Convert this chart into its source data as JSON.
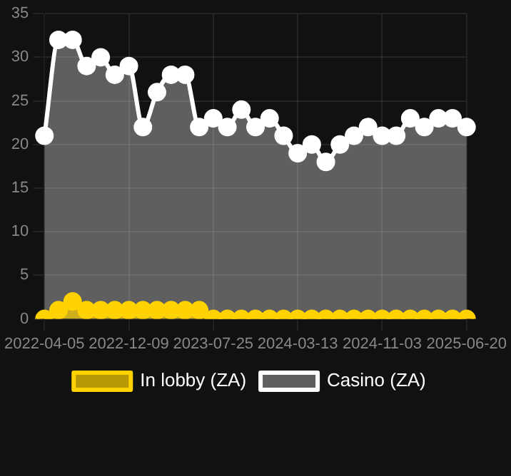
{
  "chart_data": {
    "type": "area",
    "categories": [
      "2022-04-05",
      null,
      null,
      null,
      null,
      null,
      "2022-12-09",
      null,
      null,
      null,
      null,
      null,
      "2023-07-25",
      null,
      null,
      null,
      null,
      null,
      "2024-03-13",
      null,
      null,
      null,
      null,
      null,
      "2024-11-03",
      null,
      null,
      null,
      null,
      null,
      "2025-06-20"
    ],
    "series": [
      {
        "name": "In lobby (ZA)",
        "color": "#ffd200",
        "values": [
          0,
          1,
          2,
          1,
          1,
          1,
          1,
          1,
          1,
          1,
          1,
          1,
          0,
          0,
          0,
          0,
          0,
          0,
          0,
          0,
          0,
          0,
          0,
          0,
          0,
          0,
          0,
          0,
          0,
          0,
          0
        ]
      },
      {
        "name": "Casino (ZA)",
        "color": "#ffffff",
        "values": [
          21,
          32,
          32,
          29,
          30,
          28,
          29,
          22,
          26,
          28,
          28,
          22,
          23,
          22,
          24,
          22,
          23,
          21,
          19,
          20,
          18,
          20,
          21,
          22,
          21,
          21,
          23,
          22,
          23,
          23,
          22
        ]
      }
    ],
    "ylim": [
      0,
      35
    ],
    "yticks": [
      0,
      5,
      10,
      15,
      20,
      25,
      30,
      35
    ],
    "grid": true,
    "legend": "bottom",
    "marker": "circle"
  }
}
